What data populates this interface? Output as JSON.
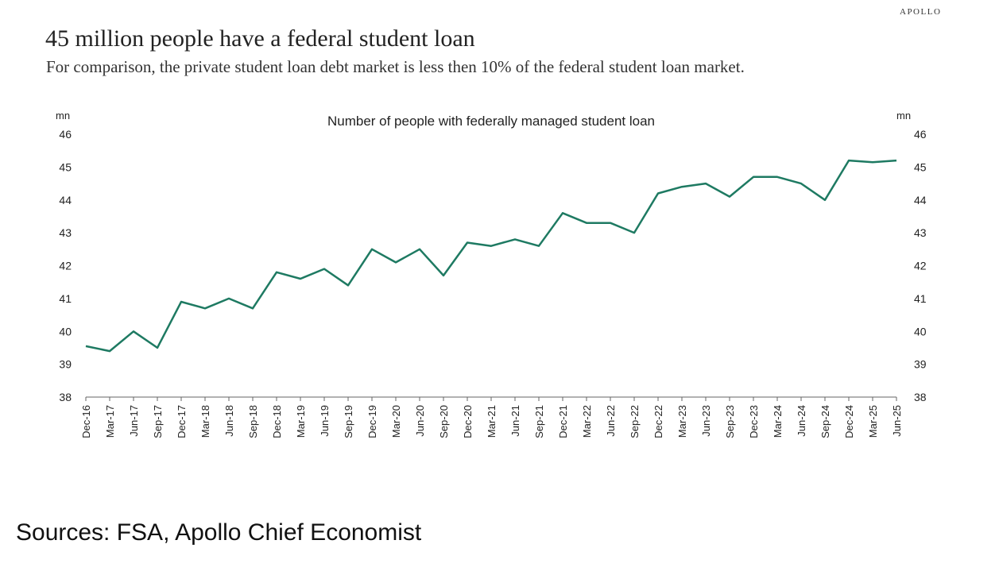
{
  "header": {
    "brand": "APOLLO",
    "title": "45 million people have a federal student loan",
    "subtitle": "For comparison, the private student loan debt market is less then 10% of the federal student loan market."
  },
  "footer": {
    "sources": "Sources: FSA, Apollo Chief Economist"
  },
  "chart_data": {
    "type": "line",
    "title": "Number of people with federally managed student loan",
    "left_unit": "mn",
    "right_unit": "mn",
    "ylim": [
      38,
      46
    ],
    "yticks": [
      38,
      39,
      40,
      41,
      42,
      43,
      44,
      45,
      46
    ],
    "grid": false,
    "line_color": "#1e7a62",
    "categories": [
      "Dec-16",
      "Mar-17",
      "Jun-17",
      "Sep-17",
      "Dec-17",
      "Mar-18",
      "Jun-18",
      "Sep-18",
      "Dec-18",
      "Mar-19",
      "Jun-19",
      "Sep-19",
      "Dec-19",
      "Mar-20",
      "Jun-20",
      "Sep-20",
      "Dec-20",
      "Mar-21",
      "Jun-21",
      "Sep-21",
      "Dec-21",
      "Mar-22",
      "Jun-22",
      "Sep-22",
      "Dec-22",
      "Mar-23",
      "Jun-23",
      "Sep-23",
      "Dec-23",
      "Mar-24",
      "Jun-24",
      "Sep-24",
      "Dec-24",
      "Mar-25",
      "Jun-25"
    ],
    "values": [
      39.55,
      39.4,
      40.0,
      39.5,
      40.9,
      40.7,
      41.0,
      40.7,
      41.8,
      41.6,
      41.9,
      41.4,
      42.5,
      42.1,
      42.5,
      41.7,
      42.7,
      42.6,
      42.8,
      42.6,
      43.6,
      43.3,
      43.3,
      43.0,
      44.2,
      44.4,
      44.5,
      44.1,
      44.7,
      44.7,
      44.5,
      44.0,
      45.2,
      45.15,
      45.2
    ]
  }
}
